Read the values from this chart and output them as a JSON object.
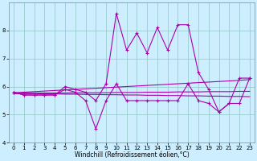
{
  "title": "",
  "xlabel": "Windchill (Refroidissement éolien,°C)",
  "background_color": "#cceeff",
  "line_color": "#aa00aa",
  "grid_color": "#99cccc",
  "xlim": [
    -0.5,
    23.5
  ],
  "ylim": [
    4,
    9
  ],
  "yticks": [
    4,
    5,
    6,
    7,
    8
  ],
  "xticks": [
    0,
    1,
    2,
    3,
    4,
    5,
    6,
    7,
    8,
    9,
    10,
    11,
    12,
    13,
    14,
    15,
    16,
    17,
    18,
    19,
    20,
    21,
    22,
    23
  ],
  "series1": [
    5.8,
    5.7,
    5.7,
    5.7,
    5.7,
    6.0,
    5.9,
    5.8,
    5.5,
    6.1,
    8.6,
    7.3,
    7.9,
    7.2,
    8.1,
    7.3,
    8.2,
    8.2,
    6.5,
    5.9,
    5.1,
    5.4,
    6.3,
    6.3
  ],
  "series2": [
    5.8,
    5.7,
    5.7,
    5.7,
    5.7,
    5.9,
    5.8,
    5.5,
    4.5,
    5.5,
    6.1,
    5.5,
    5.5,
    5.5,
    5.5,
    5.5,
    5.5,
    6.1,
    5.5,
    5.4,
    5.1,
    5.4,
    5.4,
    6.3
  ],
  "trend1": [
    5.78,
    5.8,
    5.82,
    5.84,
    5.86,
    5.88,
    5.9,
    5.92,
    5.94,
    5.96,
    5.98,
    6.0,
    6.02,
    6.04,
    6.06,
    6.08,
    6.1,
    6.12,
    6.14,
    6.16,
    6.18,
    6.2,
    6.22,
    6.25
  ],
  "trend2": [
    5.75,
    5.75,
    5.75,
    5.74,
    5.74,
    5.73,
    5.73,
    5.72,
    5.72,
    5.71,
    5.71,
    5.7,
    5.7,
    5.69,
    5.69,
    5.68,
    5.68,
    5.67,
    5.67,
    5.66,
    5.66,
    5.65,
    5.65,
    5.64
  ],
  "trend3": [
    5.76,
    5.77,
    5.77,
    5.77,
    5.77,
    5.77,
    5.78,
    5.78,
    5.78,
    5.78,
    5.79,
    5.79,
    5.79,
    5.8,
    5.8,
    5.8,
    5.81,
    5.81,
    5.81,
    5.82,
    5.82,
    5.82,
    5.83,
    5.83
  ],
  "marker": "+",
  "lw": 0.8,
  "ms": 3.5,
  "tick_fontsize": 5.0,
  "xlabel_fontsize": 5.5
}
